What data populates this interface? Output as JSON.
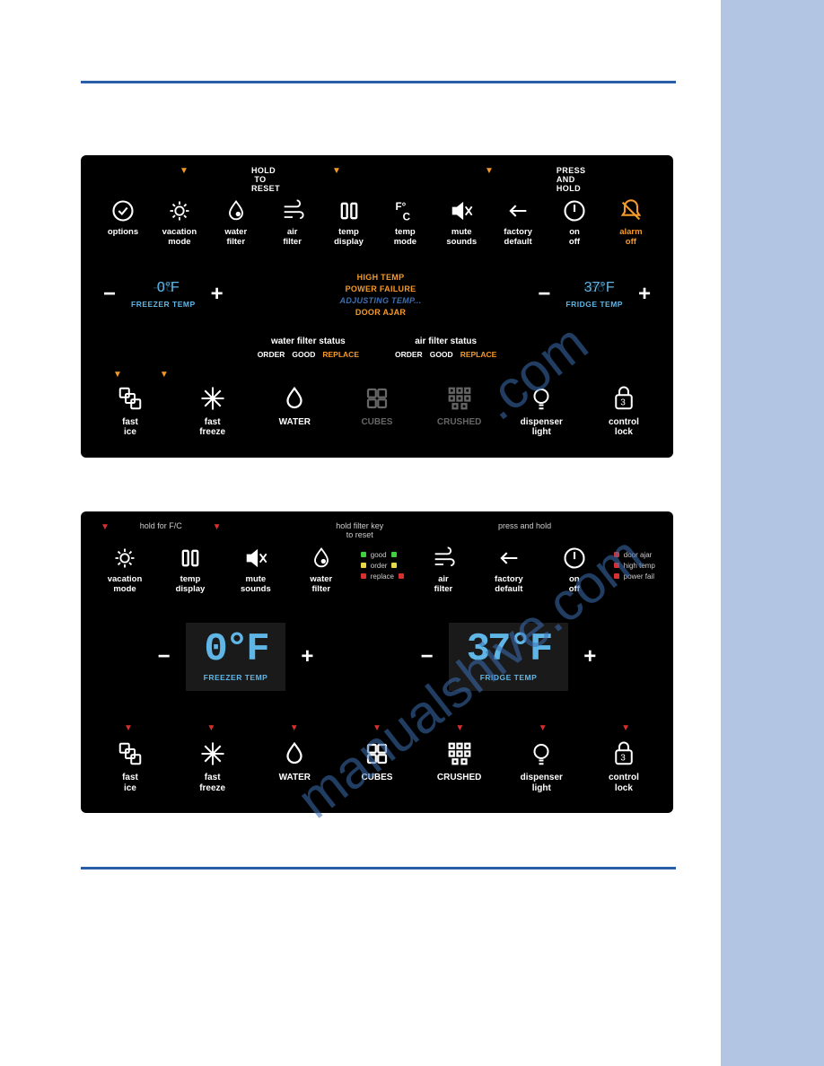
{
  "watermark": "manualshive.com",
  "colors": {
    "sidebar": "#b2c5e3",
    "rule": "#2a5ea8",
    "panel_bg": "#000000",
    "triangle_orange": "#f39a2b",
    "triangle_red": "#d82f2f",
    "segment_blue": "#5fb6e6",
    "status_blue": "#3d6fb3",
    "dim_gray": "#666666"
  },
  "panel1": {
    "hint_reset": "HOLD TO RESET",
    "hint_press": "PRESS AND HOLD",
    "top_icons": [
      {
        "name": "options-icon",
        "label": "options"
      },
      {
        "name": "vacation-mode-icon",
        "label": "vacation\nmode"
      },
      {
        "name": "water-filter-icon",
        "label": "water\nfilter"
      },
      {
        "name": "air-filter-icon",
        "label": "air\nfilter"
      },
      {
        "name": "temp-display-icon",
        "label": "temp\ndisplay"
      },
      {
        "name": "temp-mode-icon",
        "label": "temp\nmode"
      },
      {
        "name": "mute-sounds-icon",
        "label": "mute\nsounds"
      },
      {
        "name": "factory-default-icon",
        "label": "factory\ndefault"
      },
      {
        "name": "on-off-icon",
        "label": "on\noff"
      },
      {
        "name": "alarm-off-icon",
        "label": "alarm\noff",
        "accent": true
      }
    ],
    "freezer": {
      "value": "0°F",
      "label": "FREEZER TEMP"
    },
    "fridge": {
      "value": "37°F",
      "label": "FRIDGE TEMP"
    },
    "status": {
      "high_temp": "HIGH TEMP",
      "power_failure": "POWER FAILURE",
      "adjusting": "ADJUSTING TEMP...",
      "door_ajar": "DOOR AJAR"
    },
    "filter_water": {
      "title": "water filter status",
      "order": "ORDER",
      "good": "GOOD",
      "replace": "REPLACE"
    },
    "filter_air": {
      "title": "air filter status",
      "order": "ORDER",
      "good": "GOOD",
      "replace": "REPLACE"
    },
    "bot_icons": [
      {
        "name": "fast-ice-icon",
        "label": "fast\nice"
      },
      {
        "name": "fast-freeze-icon",
        "label": "fast\nfreeze"
      },
      {
        "name": "water-icon",
        "label": "WATER"
      },
      {
        "name": "cubes-icon",
        "label": "CUBES",
        "dim": true
      },
      {
        "name": "crushed-icon",
        "label": "CRUSHED",
        "dim": true
      },
      {
        "name": "dispenser-light-icon",
        "label": "dispenser\nlight"
      },
      {
        "name": "control-lock-icon",
        "label": "control\nlock"
      }
    ]
  },
  "panel2": {
    "hint_fc": "hold for F/C",
    "hint_filter": "hold filter key\nto reset",
    "hint_press": "press and hold",
    "top_icons": [
      {
        "name": "vacation-mode-icon",
        "label": "vacation\nmode"
      },
      {
        "name": "temp-display-icon",
        "label": "temp\ndisplay"
      },
      {
        "name": "mute-sounds-icon",
        "label": "mute\nsounds"
      },
      {
        "name": "water-filter-icon",
        "label": "water\nfilter"
      },
      {
        "name": "air-filter-icon",
        "label": "air\nfilter"
      },
      {
        "name": "factory-default-icon",
        "label": "factory\ndefault"
      },
      {
        "name": "on-off-icon",
        "label": "on\noff"
      }
    ],
    "leds_filter": [
      {
        "color": "green",
        "text": "good"
      },
      {
        "color": "yellow",
        "text": "order"
      },
      {
        "color": "red",
        "text": "replace"
      }
    ],
    "leds_status": [
      {
        "color": "red",
        "text": "door ajar"
      },
      {
        "color": "red",
        "text": "high temp"
      },
      {
        "color": "red",
        "text": "power fail"
      }
    ],
    "freezer": {
      "value": "0°F",
      "label": "FREEZER TEMP"
    },
    "fridge": {
      "value": "37°F",
      "label": "FRIDGE TEMP"
    },
    "bot_icons": [
      {
        "name": "fast-ice-icon",
        "label": "fast\nice"
      },
      {
        "name": "fast-freeze-icon",
        "label": "fast\nfreeze"
      },
      {
        "name": "water-icon",
        "label": "WATER"
      },
      {
        "name": "cubes-icon",
        "label": "CUBES"
      },
      {
        "name": "crushed-icon",
        "label": "CRUSHED"
      },
      {
        "name": "dispenser-light-icon",
        "label": "dispenser\nlight"
      },
      {
        "name": "control-lock-icon",
        "label": "control\nlock"
      }
    ]
  }
}
